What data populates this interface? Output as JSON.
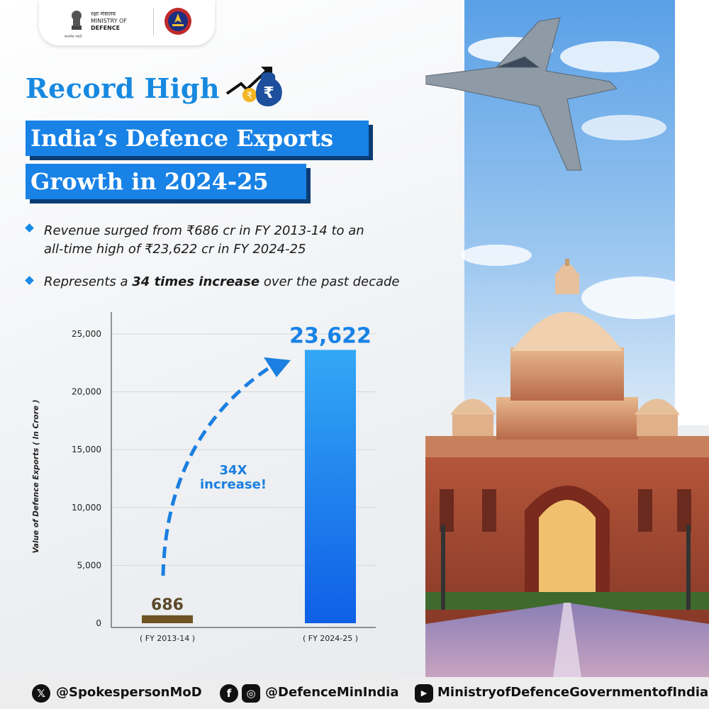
{
  "header": {
    "ministry_hindi": "रक्षा मंत्रालय",
    "ministry_line1": "MINISTRY OF",
    "ministry_line2": "DEFENCE",
    "motto": "सत्यमेव जयते"
  },
  "title": {
    "record": "Record High",
    "line1": "India’s Defence Exports",
    "line2": "Growth in 2024-25"
  },
  "bullets": [
    {
      "pre": "Revenue surged from ₹686 cr in FY 2013-14 to an",
      "line2": "all-time high of ₹23,622 cr in FY 2024-25"
    },
    {
      "pre": "Represents a ",
      "bold": "34 times increase",
      "post": " over the past decade"
    }
  ],
  "chart_data": {
    "type": "bar",
    "categories": [
      "( FY 2013-14 )",
      "( FY 2024-25 )"
    ],
    "values": [
      686,
      23622
    ],
    "value_labels": [
      "686",
      "23,622"
    ],
    "bar_colors": [
      "#6e5423",
      "#1c86ea"
    ],
    "ylabel": "Value of Defence Exports ( In Crore )",
    "ylim": [
      0,
      25000
    ],
    "yticks": [
      0,
      5000,
      10000,
      15000,
      20000,
      25000
    ],
    "ytick_labels": [
      "0",
      "5,000",
      "10,000",
      "15,000",
      "20,000",
      "25,000"
    ],
    "grid": true,
    "annotation": [
      "34X",
      "increase!"
    ]
  },
  "footer": {
    "x_handle": "@SpokespersonMoD",
    "fb_ig_handle": "@DefenceMinIndia",
    "youtube_handle": "MinistryofDefenceGovernmentofIndia",
    "x_icon": "x-icon",
    "fb_icon": "facebook-icon",
    "ig_icon": "instagram-icon",
    "yt_icon": "youtube-icon"
  }
}
